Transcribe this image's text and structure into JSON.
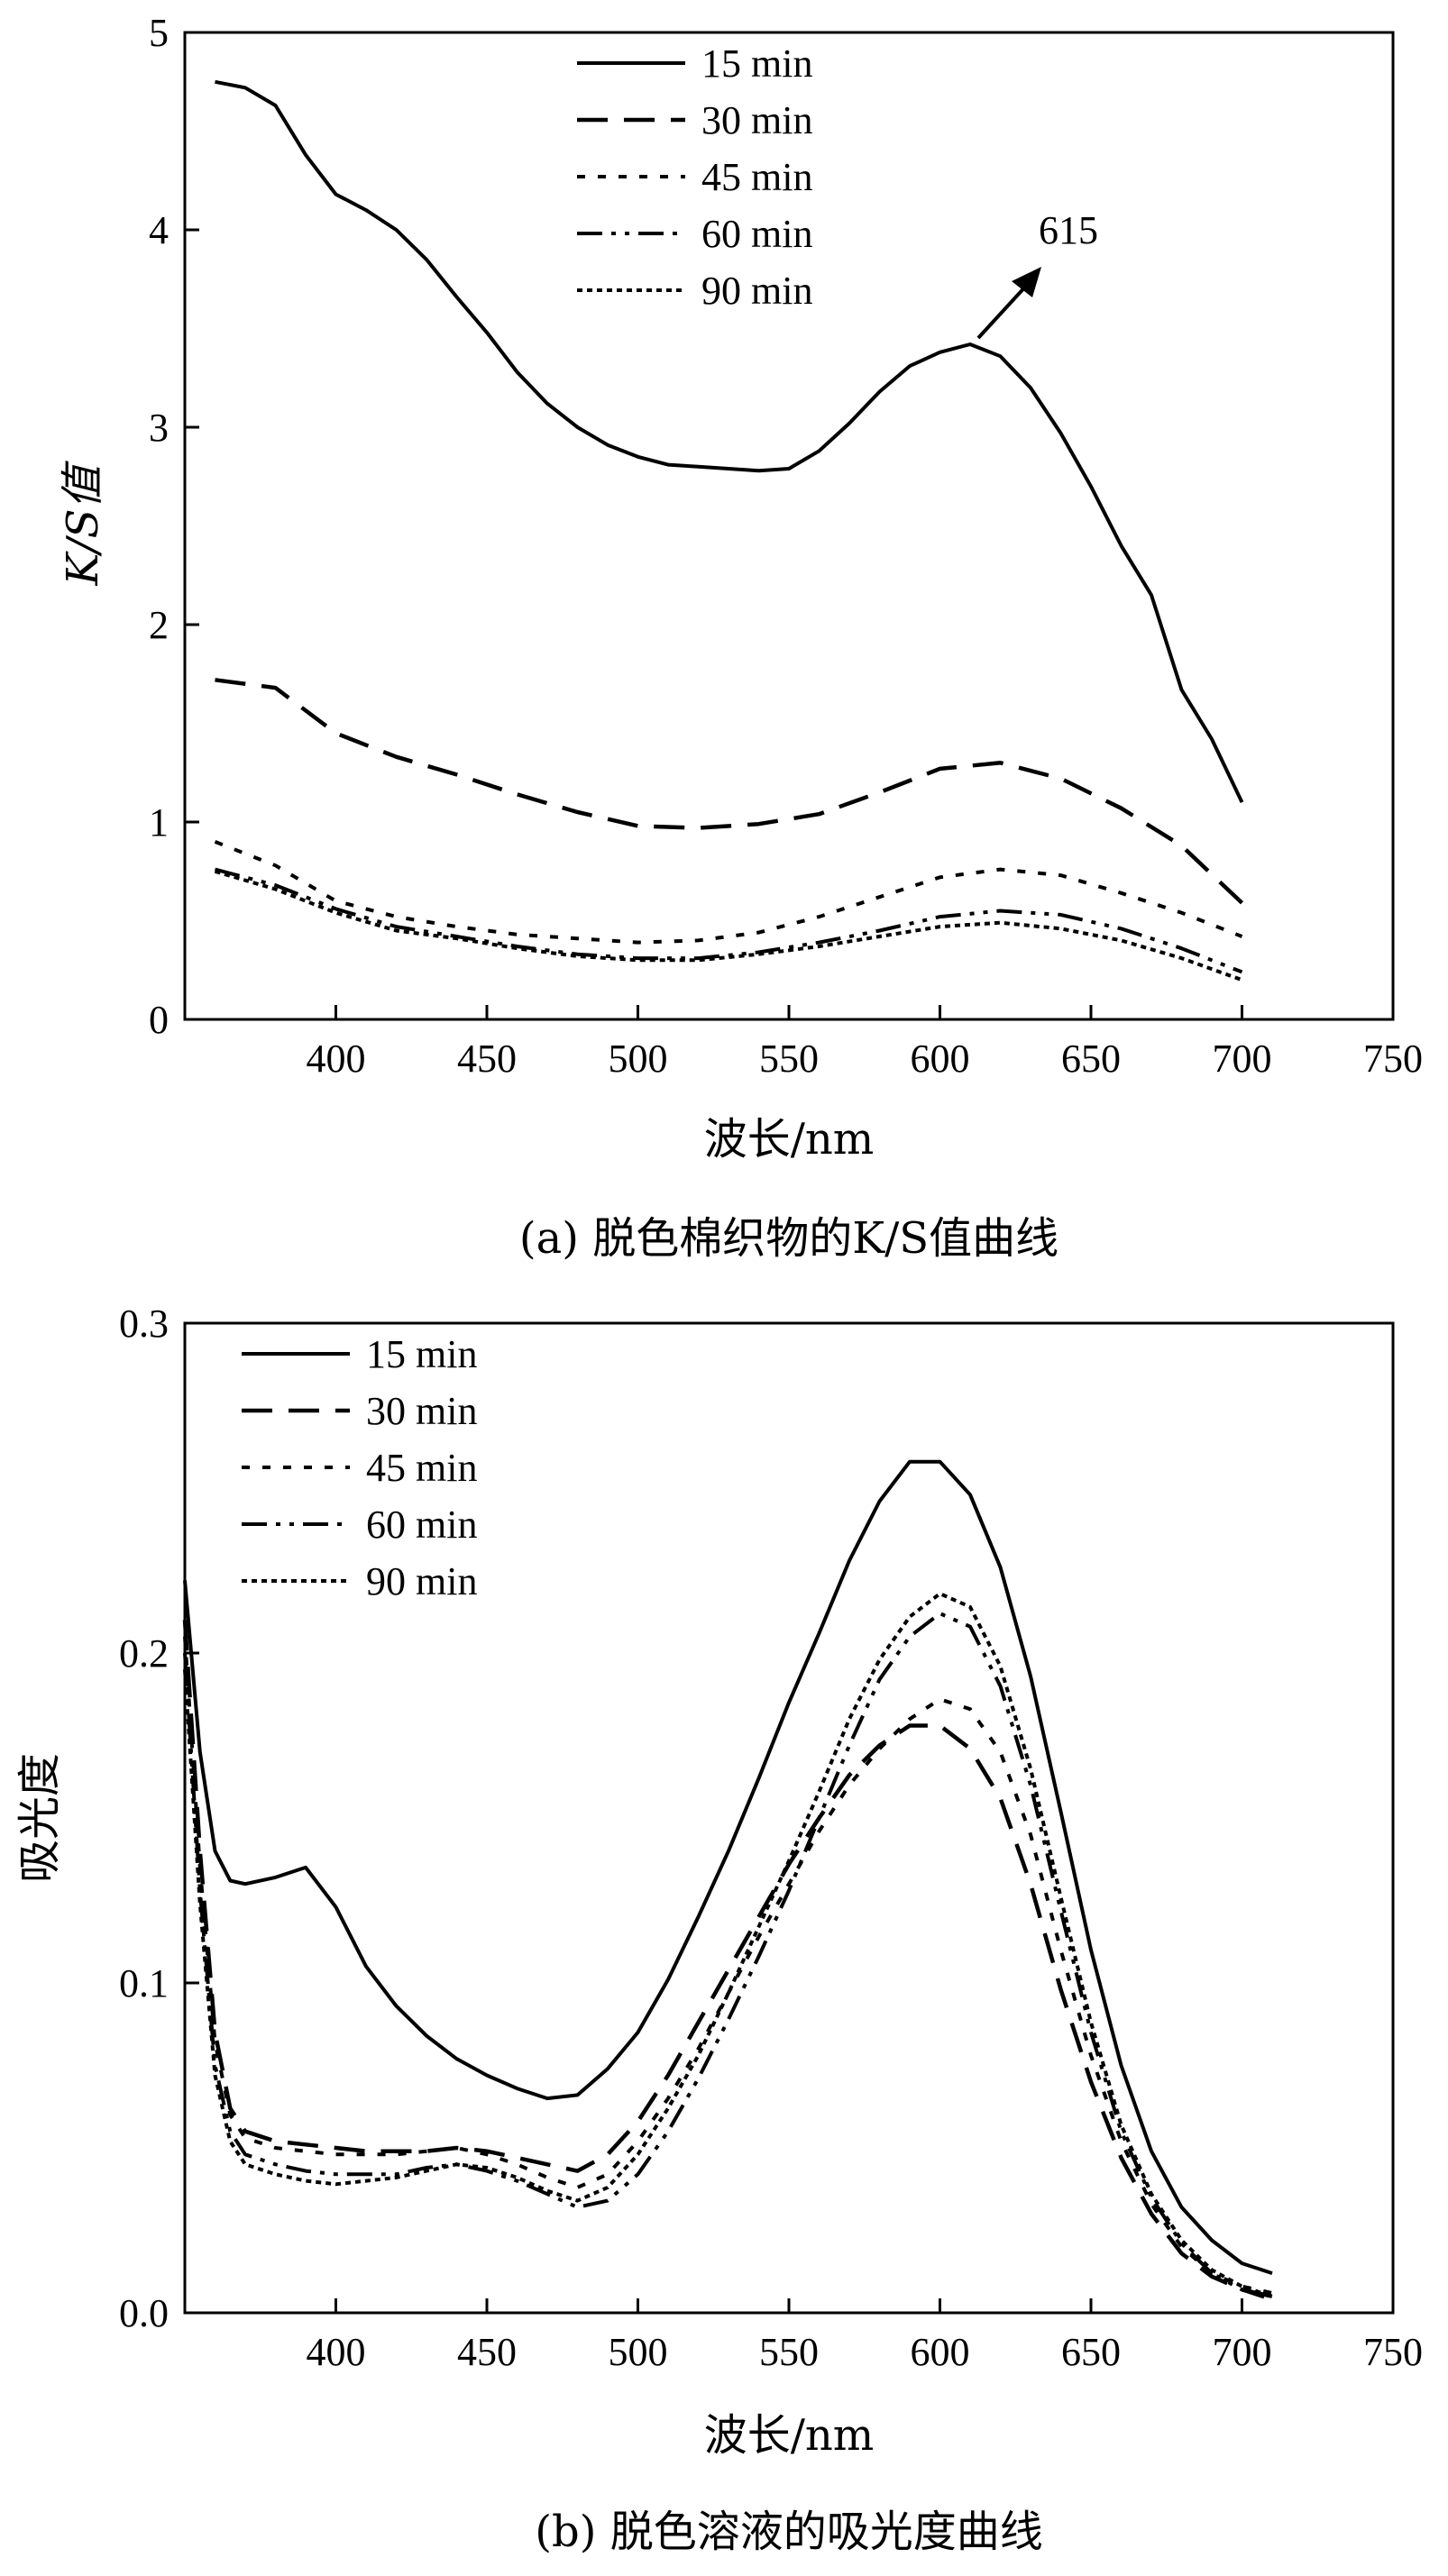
{
  "chart_data": [
    {
      "type": "line",
      "caption": "(a)  脱色棉织物的K/S值曲线",
      "xlabel": "波长/nm",
      "ylabel": "K/S值",
      "xlim": [
        350,
        750
      ],
      "ylim": [
        0,
        5
      ],
      "xticks": [
        400,
        450,
        500,
        550,
        600,
        650,
        700,
        750
      ],
      "yticks": [
        0,
        1,
        2,
        3,
        4,
        5
      ],
      "legend_position": "top-center",
      "annotations": [
        {
          "text": "615",
          "x": 615,
          "y": 3.42
        }
      ],
      "series": [
        {
          "name": "15 min",
          "x": [
            360,
            370,
            380,
            390,
            400,
            410,
            420,
            430,
            440,
            450,
            460,
            470,
            480,
            490,
            500,
            510,
            520,
            530,
            540,
            550,
            560,
            570,
            580,
            590,
            600,
            610,
            620,
            630,
            640,
            650,
            660,
            670,
            680,
            690,
            700
          ],
          "y": [
            4.75,
            4.72,
            4.63,
            4.38,
            4.18,
            4.1,
            4.0,
            3.85,
            3.66,
            3.48,
            3.28,
            3.12,
            3.0,
            2.91,
            2.85,
            2.81,
            2.8,
            2.79,
            2.78,
            2.79,
            2.88,
            3.02,
            3.18,
            3.31,
            3.38,
            3.42,
            3.36,
            3.2,
            2.97,
            2.7,
            2.4,
            2.15,
            1.67,
            1.42,
            1.1
          ]
        },
        {
          "name": "30 min",
          "x": [
            360,
            380,
            400,
            420,
            440,
            460,
            480,
            500,
            520,
            540,
            560,
            580,
            600,
            620,
            640,
            660,
            680,
            700
          ],
          "y": [
            1.72,
            1.68,
            1.45,
            1.33,
            1.24,
            1.14,
            1.05,
            0.98,
            0.97,
            0.99,
            1.04,
            1.15,
            1.27,
            1.3,
            1.22,
            1.07,
            0.88,
            0.59
          ]
        },
        {
          "name": "45 min",
          "x": [
            360,
            380,
            400,
            420,
            440,
            460,
            480,
            500,
            520,
            540,
            560,
            580,
            600,
            620,
            640,
            660,
            680,
            700
          ],
          "y": [
            0.9,
            0.78,
            0.6,
            0.52,
            0.47,
            0.43,
            0.41,
            0.39,
            0.4,
            0.44,
            0.52,
            0.62,
            0.72,
            0.76,
            0.73,
            0.64,
            0.54,
            0.42
          ]
        },
        {
          "name": "60 min",
          "x": [
            360,
            380,
            400,
            420,
            440,
            460,
            480,
            500,
            520,
            540,
            560,
            580,
            600,
            620,
            640,
            660,
            680,
            700
          ],
          "y": [
            0.76,
            0.68,
            0.56,
            0.47,
            0.42,
            0.37,
            0.33,
            0.31,
            0.31,
            0.34,
            0.39,
            0.45,
            0.52,
            0.55,
            0.53,
            0.46,
            0.36,
            0.24
          ]
        },
        {
          "name": "90 min",
          "x": [
            360,
            380,
            400,
            420,
            440,
            460,
            480,
            500,
            520,
            540,
            560,
            580,
            600,
            620,
            640,
            660,
            680,
            700
          ],
          "y": [
            0.75,
            0.66,
            0.54,
            0.45,
            0.41,
            0.36,
            0.32,
            0.3,
            0.3,
            0.33,
            0.37,
            0.42,
            0.47,
            0.49,
            0.46,
            0.4,
            0.31,
            0.2
          ]
        }
      ]
    },
    {
      "type": "line",
      "caption": "(b)  脱色溶液的吸光度曲线",
      "xlabel": "波长/nm",
      "ylabel": "吸光度",
      "xlim": [
        350,
        750
      ],
      "ylim": [
        0.0,
        0.3
      ],
      "xticks": [
        400,
        450,
        500,
        550,
        600,
        650,
        700,
        750
      ],
      "yticks": [
        0.0,
        0.1,
        0.2,
        0.3
      ],
      "ytick_labels": [
        "0.0",
        "0.1",
        "0.2",
        "0.3"
      ],
      "legend_position": "top-left",
      "series": [
        {
          "name": "15 min",
          "x": [
            350,
            355,
            360,
            365,
            370,
            380,
            390,
            400,
            410,
            420,
            430,
            440,
            450,
            460,
            470,
            480,
            490,
            500,
            510,
            520,
            530,
            540,
            550,
            560,
            570,
            580,
            590,
            600,
            610,
            620,
            630,
            640,
            650,
            660,
            670,
            680,
            690,
            700,
            710
          ],
          "y": [
            0.222,
            0.17,
            0.14,
            0.131,
            0.13,
            0.132,
            0.135,
            0.123,
            0.105,
            0.093,
            0.084,
            0.077,
            0.072,
            0.068,
            0.065,
            0.066,
            0.074,
            0.085,
            0.101,
            0.12,
            0.14,
            0.162,
            0.185,
            0.206,
            0.228,
            0.246,
            0.258,
            0.258,
            0.248,
            0.226,
            0.193,
            0.152,
            0.11,
            0.075,
            0.049,
            0.032,
            0.022,
            0.015,
            0.012
          ]
        },
        {
          "name": "30 min",
          "x": [
            350,
            355,
            360,
            365,
            370,
            380,
            390,
            400,
            410,
            420,
            430,
            440,
            450,
            460,
            470,
            480,
            490,
            500,
            510,
            520,
            530,
            540,
            550,
            560,
            570,
            580,
            590,
            600,
            610,
            620,
            630,
            640,
            650,
            660,
            670,
            680,
            690,
            700,
            710
          ],
          "y": [
            0.21,
            0.14,
            0.085,
            0.062,
            0.055,
            0.052,
            0.051,
            0.05,
            0.049,
            0.049,
            0.049,
            0.05,
            0.049,
            0.047,
            0.045,
            0.043,
            0.048,
            0.058,
            0.072,
            0.088,
            0.104,
            0.12,
            0.136,
            0.15,
            0.163,
            0.172,
            0.178,
            0.178,
            0.171,
            0.156,
            0.13,
            0.098,
            0.07,
            0.047,
            0.03,
            0.018,
            0.011,
            0.007,
            0.005
          ]
        },
        {
          "name": "45 min",
          "x": [
            350,
            355,
            360,
            365,
            370,
            380,
            390,
            400,
            410,
            420,
            430,
            440,
            450,
            460,
            470,
            480,
            490,
            500,
            510,
            520,
            530,
            540,
            550,
            560,
            570,
            580,
            590,
            600,
            610,
            620,
            630,
            640,
            650,
            660,
            670,
            680,
            690,
            700,
            710
          ],
          "y": [
            0.205,
            0.135,
            0.082,
            0.06,
            0.053,
            0.05,
            0.049,
            0.048,
            0.048,
            0.048,
            0.049,
            0.05,
            0.048,
            0.045,
            0.041,
            0.038,
            0.042,
            0.052,
            0.065,
            0.08,
            0.097,
            0.114,
            0.13,
            0.146,
            0.16,
            0.171,
            0.18,
            0.186,
            0.183,
            0.17,
            0.145,
            0.11,
            0.078,
            0.052,
            0.033,
            0.02,
            0.012,
            0.008,
            0.006
          ]
        },
        {
          "name": "60 min",
          "x": [
            350,
            355,
            360,
            365,
            370,
            380,
            390,
            400,
            410,
            420,
            430,
            440,
            450,
            460,
            470,
            480,
            490,
            500,
            510,
            520,
            530,
            540,
            550,
            560,
            570,
            580,
            590,
            600,
            610,
            620,
            630,
            640,
            650,
            660,
            670,
            680,
            690,
            700,
            710
          ],
          "y": [
            0.2,
            0.128,
            0.075,
            0.055,
            0.048,
            0.045,
            0.043,
            0.042,
            0.042,
            0.042,
            0.044,
            0.045,
            0.043,
            0.04,
            0.036,
            0.032,
            0.034,
            0.042,
            0.055,
            0.071,
            0.089,
            0.108,
            0.128,
            0.15,
            0.172,
            0.192,
            0.205,
            0.212,
            0.208,
            0.19,
            0.16,
            0.122,
            0.085,
            0.055,
            0.035,
            0.021,
            0.012,
            0.007,
            0.004
          ]
        },
        {
          "name": "90 min",
          "x": [
            350,
            355,
            360,
            365,
            370,
            380,
            390,
            400,
            410,
            420,
            430,
            440,
            450,
            460,
            470,
            480,
            490,
            500,
            510,
            520,
            530,
            540,
            550,
            560,
            570,
            580,
            590,
            600,
            610,
            620,
            630,
            640,
            650,
            660,
            670,
            680,
            690,
            700,
            710
          ],
          "y": [
            0.195,
            0.124,
            0.072,
            0.052,
            0.045,
            0.042,
            0.04,
            0.039,
            0.04,
            0.041,
            0.043,
            0.045,
            0.044,
            0.041,
            0.037,
            0.034,
            0.038,
            0.048,
            0.062,
            0.078,
            0.097,
            0.117,
            0.137,
            0.158,
            0.18,
            0.198,
            0.211,
            0.218,
            0.214,
            0.196,
            0.165,
            0.126,
            0.088,
            0.057,
            0.036,
            0.022,
            0.013,
            0.008,
            0.005
          ]
        }
      ]
    }
  ]
}
